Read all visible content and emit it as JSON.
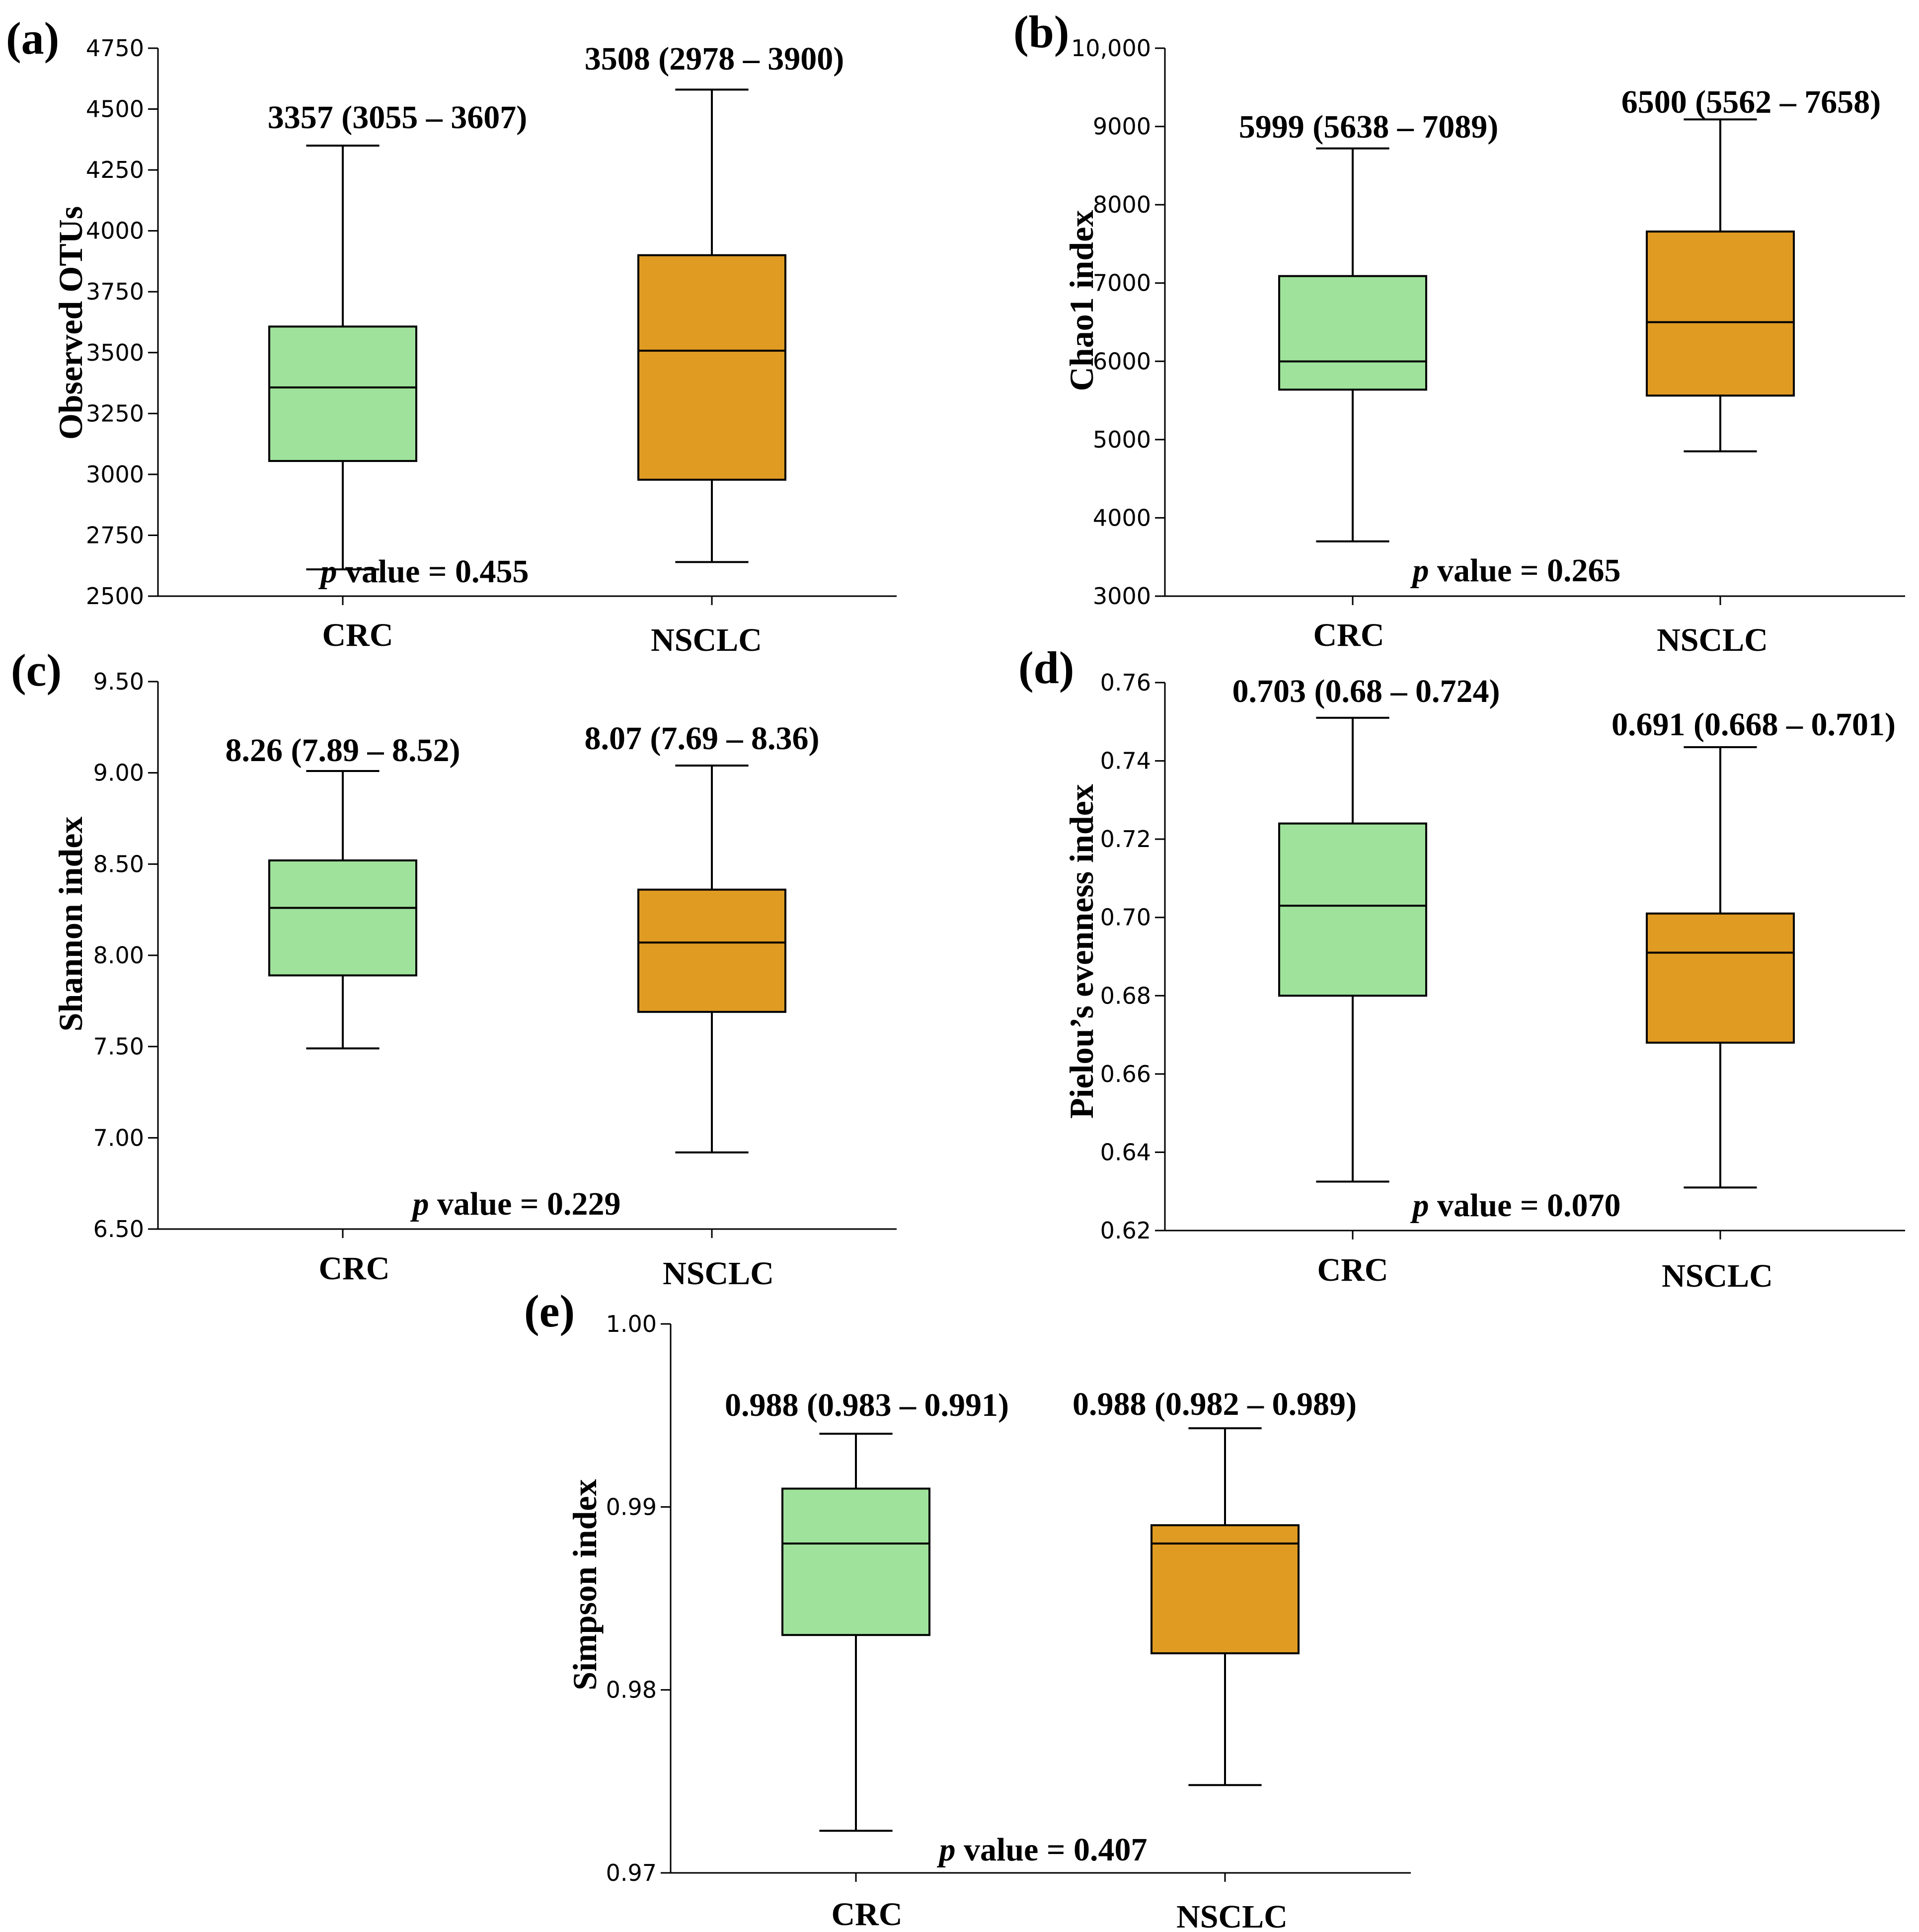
{
  "chart_data": [
    {
      "panel": "(a)",
      "type": "box",
      "ylabel": "Observed OTUs",
      "ylim": [
        2500,
        4750
      ],
      "yticks": [
        2500,
        2750,
        3000,
        3250,
        3500,
        3750,
        4000,
        4250,
        4500,
        4750
      ],
      "ytick_labels": [
        "2500",
        "2750",
        "3000",
        "3250",
        "3500",
        "3750",
        "4000",
        "4250",
        "4500",
        "4750"
      ],
      "categories": [
        "CRC",
        "NSCLC"
      ],
      "groups": [
        {
          "name": "CRC",
          "color": "#9fe29b",
          "whisker_low": 2610,
          "q1": 3055,
          "median": 3357,
          "q3": 3607,
          "whisker_high": 4350,
          "label": "3357 (3055 – 3607)"
        },
        {
          "name": "NSCLC",
          "color": "#e09b23",
          "whisker_low": 2640,
          "q1": 2978,
          "median": 3508,
          "q3": 3900,
          "whisker_high": 4580,
          "label": "3508 (2978 – 3900)"
        }
      ],
      "p_prefix": "p",
      "p_text": " value = 0.455"
    },
    {
      "panel": "(b)",
      "type": "box",
      "ylabel": "Chao1 index",
      "ylim": [
        3000,
        10000
      ],
      "yticks": [
        3000,
        4000,
        5000,
        6000,
        7000,
        8000,
        9000,
        10000
      ],
      "ytick_labels": [
        "3000",
        "4000",
        "5000",
        "6000",
        "7000",
        "8000",
        "9000",
        "10,000"
      ],
      "categories": [
        "CRC",
        "NSCLC"
      ],
      "groups": [
        {
          "name": "CRC",
          "color": "#9fe29b",
          "whisker_low": 3700,
          "q1": 5638,
          "median": 5999,
          "q3": 7089,
          "whisker_high": 8720,
          "label": "5999 (5638 – 7089)"
        },
        {
          "name": "NSCLC",
          "color": "#e09b23",
          "whisker_low": 4850,
          "q1": 5562,
          "median": 6500,
          "q3": 7658,
          "whisker_high": 9090,
          "label": "6500 (5562 – 7658)"
        }
      ],
      "p_prefix": "p",
      "p_text": " value = 0.265"
    },
    {
      "panel": "(c)",
      "type": "box",
      "ylabel": "Shannon index",
      "ylim": [
        6.5,
        9.5
      ],
      "yticks": [
        6.5,
        7.0,
        7.5,
        8.0,
        8.5,
        9.0,
        9.5
      ],
      "ytick_labels": [
        "6.50",
        "7.00",
        "7.50",
        "8.00",
        "8.50",
        "9.00",
        "9.50"
      ],
      "categories": [
        "CRC",
        "NSCLC"
      ],
      "groups": [
        {
          "name": "CRC",
          "color": "#9fe29b",
          "whisker_low": 7.49,
          "q1": 7.89,
          "median": 8.26,
          "q3": 8.52,
          "whisker_high": 9.01,
          "label": "8.26 (7.89 – 8.52)"
        },
        {
          "name": "NSCLC",
          "color": "#e09b23",
          "whisker_low": 6.92,
          "q1": 7.69,
          "median": 8.07,
          "q3": 8.36,
          "whisker_high": 9.04,
          "label": "8.07 (7.69 – 8.36)"
        }
      ],
      "p_prefix": "p",
      "p_text": " value = 0.229"
    },
    {
      "panel": "(d)",
      "type": "box",
      "ylabel": "Pielou’s evenness index",
      "ylim": [
        0.62,
        0.76
      ],
      "yticks": [
        0.62,
        0.64,
        0.66,
        0.68,
        0.7,
        0.72,
        0.74,
        0.76
      ],
      "ytick_labels": [
        "0.62",
        "0.64",
        "0.66",
        "0.68",
        "0.70",
        "0.72",
        "0.74",
        "0.76"
      ],
      "categories": [
        "CRC",
        "NSCLC"
      ],
      "groups": [
        {
          "name": "CRC",
          "color": "#9fe29b",
          "whisker_low": 0.6325,
          "q1": 0.68,
          "median": 0.703,
          "q3": 0.724,
          "whisker_high": 0.751,
          "label": "0.703 (0.68 – 0.724)"
        },
        {
          "name": "NSCLC",
          "color": "#e09b23",
          "whisker_low": 0.631,
          "q1": 0.668,
          "median": 0.691,
          "q3": 0.701,
          "whisker_high": 0.7435,
          "label": "0.691 (0.668 – 0.701)"
        }
      ],
      "p_prefix": "p",
      "p_text": " value = 0.070"
    },
    {
      "panel": "(e)",
      "type": "box",
      "ylabel": "Simpson index",
      "ylim": [
        0.97,
        1.0
      ],
      "yticks": [
        0.97,
        0.98,
        0.99,
        1.0
      ],
      "ytick_labels": [
        "0.97",
        "0.98",
        "0.99",
        "1.00"
      ],
      "categories": [
        "CRC",
        "NSCLC"
      ],
      "groups": [
        {
          "name": "CRC",
          "color": "#9fe29b",
          "whisker_low": 0.9723,
          "q1": 0.983,
          "median": 0.988,
          "q3": 0.991,
          "whisker_high": 0.994,
          "label": "0.988 (0.983 – 0.991)"
        },
        {
          "name": "NSCLC",
          "color": "#e09b23",
          "whisker_low": 0.9748,
          "q1": 0.982,
          "median": 0.988,
          "q3": 0.989,
          "whisker_high": 0.9943,
          "label": "0.988 (0.982 – 0.989)"
        }
      ],
      "p_prefix": "p",
      "p_text": " value = 0.407"
    }
  ]
}
